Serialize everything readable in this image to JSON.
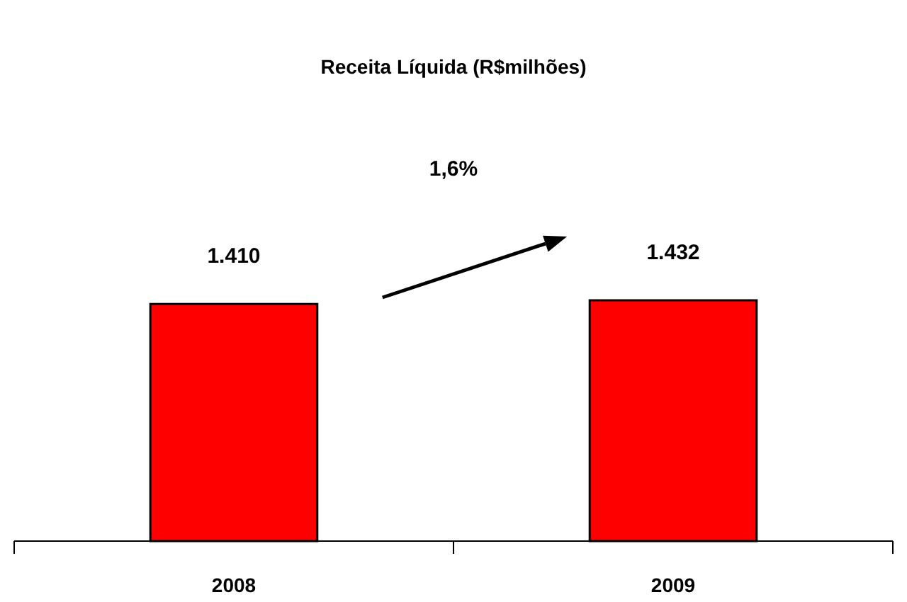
{
  "chart_data": {
    "type": "bar",
    "title": "Receita Líquida (R$milhões)",
    "categories": [
      "2008",
      "2009"
    ],
    "values": [
      1410,
      1432
    ],
    "value_labels": [
      "1.410",
      "1.432"
    ],
    "color": "#ff0000",
    "annotations": [
      "1,6%"
    ]
  }
}
